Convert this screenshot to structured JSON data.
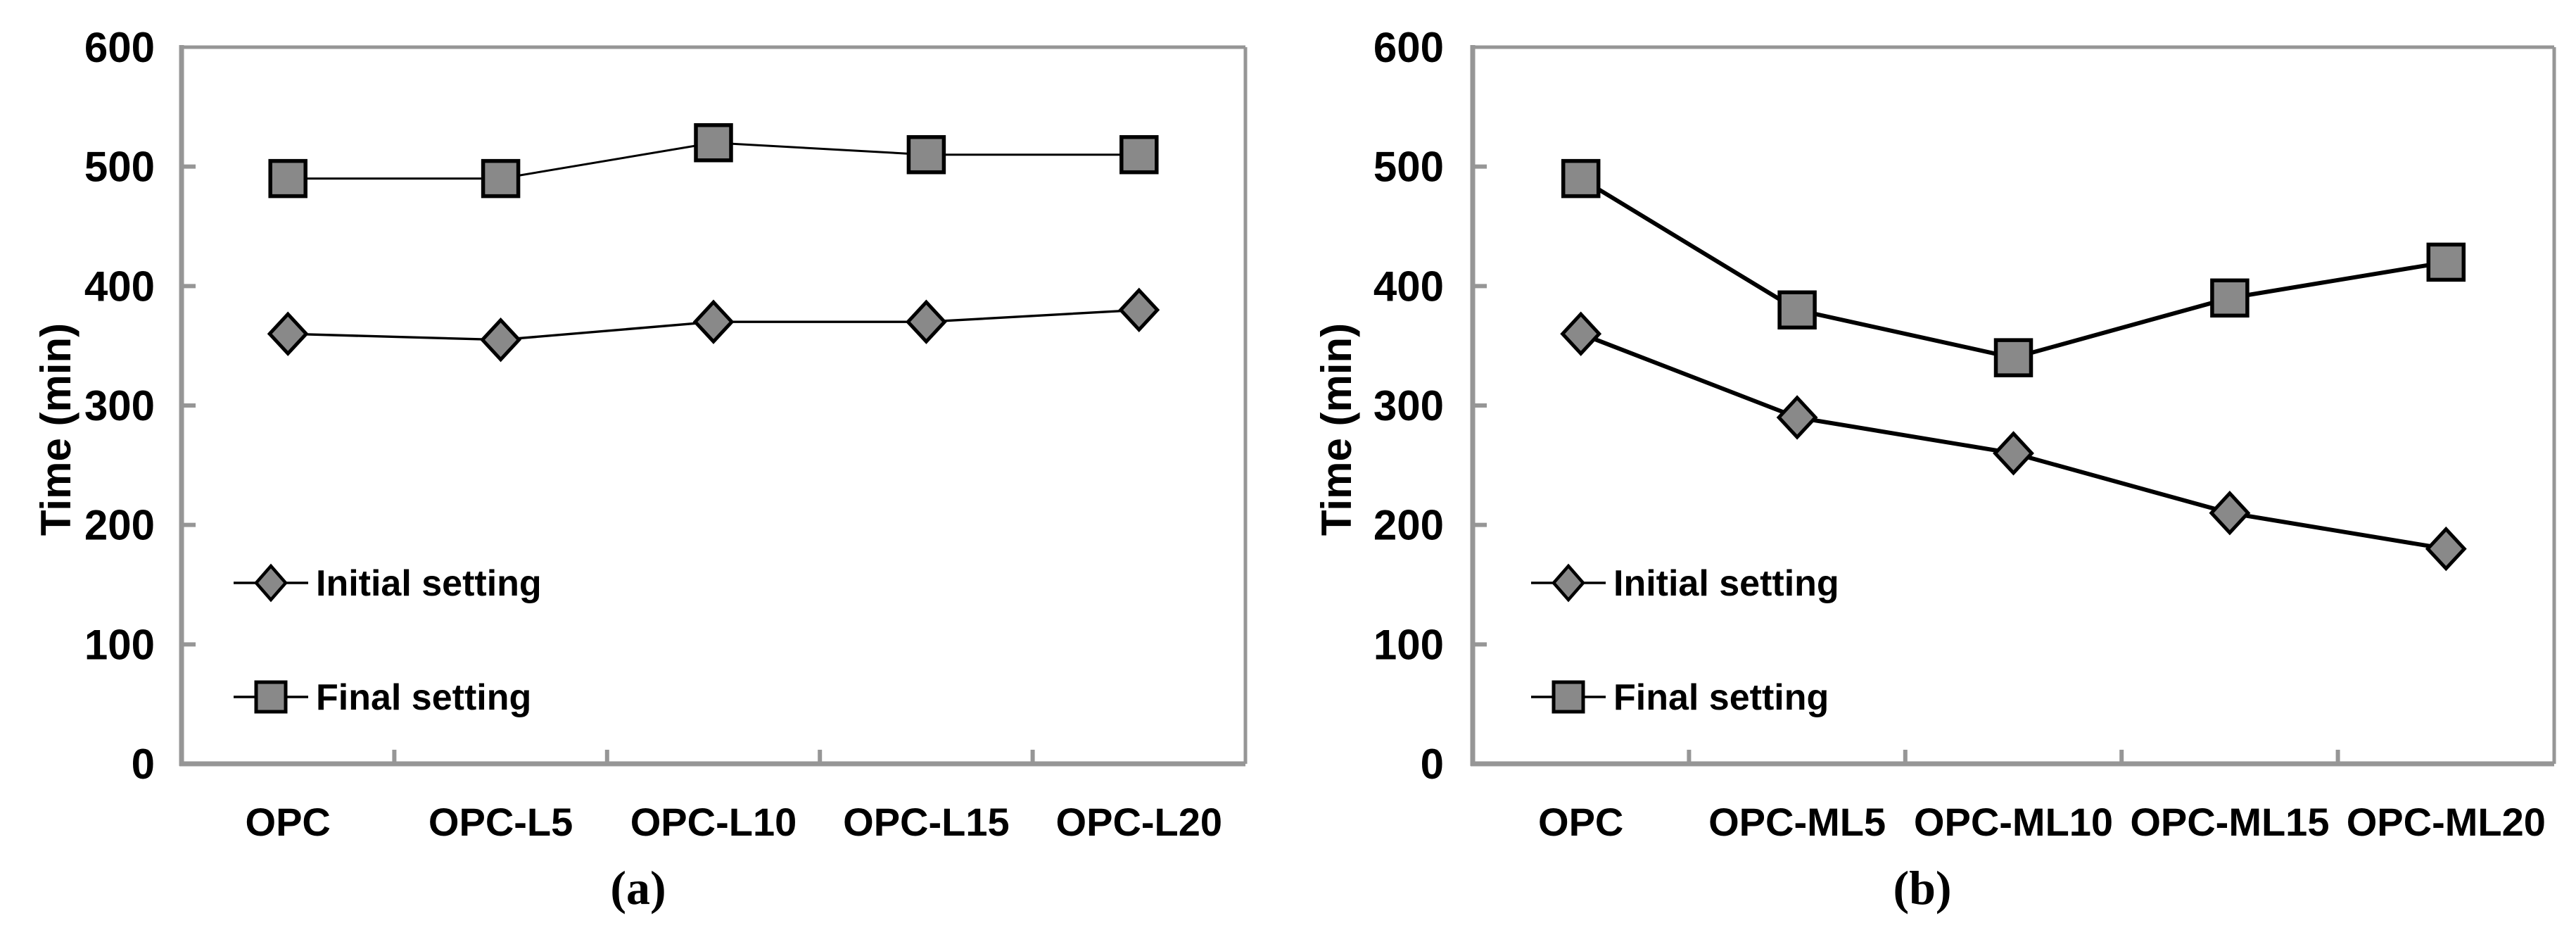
{
  "figure": {
    "background": "#ffffff"
  },
  "colors": {
    "axis": "#969696",
    "marker_fill": "#898989",
    "marker_stroke": "#000000",
    "series_line": "#000000",
    "text": "#000000"
  },
  "chart_data": [
    {
      "type": "line",
      "panel_caption": "(a)",
      "ylabel": "Time (min)",
      "xlabel": "",
      "ylim": [
        0,
        600
      ],
      "yticks": [
        0,
        100,
        200,
        300,
        400,
        500,
        600
      ],
      "grid": false,
      "legend_position": "inside-lower-left",
      "categories": [
        "OPC",
        "OPC-L5",
        "OPC-L10",
        "OPC-L15",
        "OPC-L20"
      ],
      "series": [
        {
          "name": "Initial setting",
          "marker": "diamond",
          "values": [
            360,
            355,
            370,
            370,
            380
          ]
        },
        {
          "name": "Final setting",
          "marker": "square",
          "values": [
            490,
            490,
            520,
            510,
            510
          ]
        }
      ]
    },
    {
      "type": "line",
      "panel_caption": "(b)",
      "ylabel": "Time (min)",
      "xlabel": "",
      "ylim": [
        0,
        600
      ],
      "yticks": [
        0,
        100,
        200,
        300,
        400,
        500,
        600
      ],
      "grid": false,
      "legend_position": "inside-lower-left",
      "categories": [
        "OPC",
        "OPC-ML5",
        "OPC-ML10",
        "OPC-ML15",
        "OPC-ML20"
      ],
      "series": [
        {
          "name": "Initial setting",
          "marker": "diamond",
          "values": [
            360,
            290,
            260,
            210,
            180
          ]
        },
        {
          "name": "Final setting",
          "marker": "square",
          "values": [
            490,
            380,
            340,
            390,
            420
          ]
        }
      ]
    }
  ]
}
